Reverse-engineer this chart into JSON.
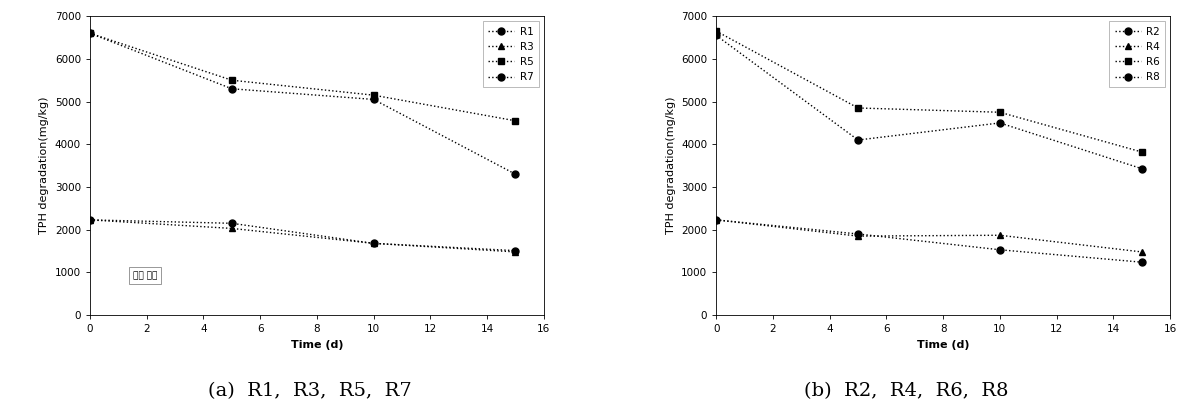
{
  "time": [
    0,
    5,
    10,
    15
  ],
  "panel_a": {
    "R1": [
      6600,
      5300,
      5050,
      3300
    ],
    "R3": [
      2230,
      2030,
      1680,
      1480
    ],
    "R5": [
      6600,
      5500,
      5150,
      4550
    ],
    "R7": [
      2230,
      2150,
      1680,
      1510
    ]
  },
  "panel_b": {
    "R2": [
      6550,
      4100,
      4500,
      3430
    ],
    "R4": [
      2230,
      1850,
      1870,
      1480
    ],
    "R6": [
      6650,
      4850,
      4750,
      3820
    ],
    "R8": [
      2230,
      1900,
      1530,
      1240
    ]
  },
  "ylabel": "TPH degradation(mg/kg)",
  "xlabel": "Time (d)",
  "ylim": [
    0,
    7000
  ],
  "xlim": [
    0,
    16
  ],
  "xticks": [
    0,
    2,
    4,
    6,
    8,
    10,
    12,
    14,
    16
  ],
  "yticks": [
    0,
    1000,
    2000,
    3000,
    4000,
    5000,
    6000,
    7000
  ],
  "caption_a": "(a)  R1,  R3,  R5,  R7",
  "caption_b": "(b)  R2,  R4,  R6,  R8",
  "line_color": "#000000",
  "bg_color": "#ffffff",
  "fontsize_tick": 7.5,
  "fontsize_label": 8,
  "fontsize_legend": 7.5,
  "fontsize_caption": 14,
  "series_a": [
    {
      "key": "R1",
      "marker": "o",
      "label": "R1"
    },
    {
      "key": "R3",
      "marker": "^",
      "label": "R3"
    },
    {
      "key": "R5",
      "marker": "s",
      "label": "R5"
    },
    {
      "key": "R7",
      "marker": "o",
      "label": "R7"
    }
  ],
  "series_b": [
    {
      "key": "R2",
      "marker": "o",
      "label": "R2"
    },
    {
      "key": "R4",
      "marker": "^",
      "label": "R4"
    },
    {
      "key": "R6",
      "marker": "s",
      "label": "R6"
    },
    {
      "key": "R8",
      "marker": "o",
      "label": "R8"
    }
  ]
}
